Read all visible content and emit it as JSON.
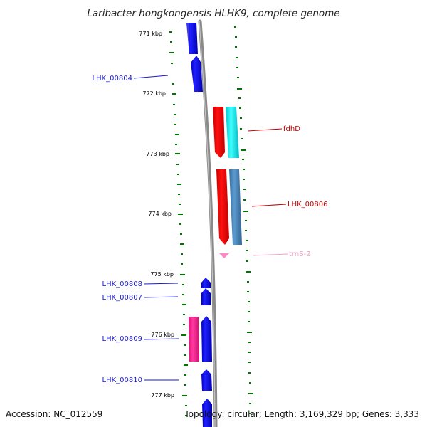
{
  "title": "Laribacter hongkongensis HLHK9, complete genome",
  "footer": {
    "accession": "Accession: NC_012559",
    "summary": "Topology: circular; Length: 3,169,329 bp; Genes: 3,333"
  },
  "ticks": [
    {
      "label": "771 kbp"
    },
    {
      "label": "772 kbp"
    },
    {
      "label": "773 kbp"
    },
    {
      "label": "774 kbp"
    },
    {
      "label": "775 kbp"
    },
    {
      "label": "776 kbp"
    },
    {
      "label": "777 kbp"
    }
  ],
  "genes": [
    {
      "name": "LHK_00804",
      "color": "#1a1acc"
    },
    {
      "name": "fdhD",
      "color": "#cc0000"
    },
    {
      "name": "LHK_00806",
      "color": "#cc0000"
    },
    {
      "name": "trnS-2",
      "color": "#f0a0c8"
    },
    {
      "name": "LHK_00808",
      "color": "#1a1acc"
    },
    {
      "name": "LHK_00807",
      "color": "#1a1acc"
    },
    {
      "name": "LHK_00809",
      "color": "#1a1acc"
    },
    {
      "name": "LHK_00810",
      "color": "#1a1acc"
    }
  ],
  "colors": {
    "forward_cds": "#0000ee",
    "reverse_cds": "#ff0000",
    "cyan_feature": "#00e8ee",
    "steelblue_feature": "#4682b4",
    "magenta_feature": "#ff1493",
    "trna": "#ff88c8",
    "backbone": "#888888",
    "tick": "#007700"
  }
}
